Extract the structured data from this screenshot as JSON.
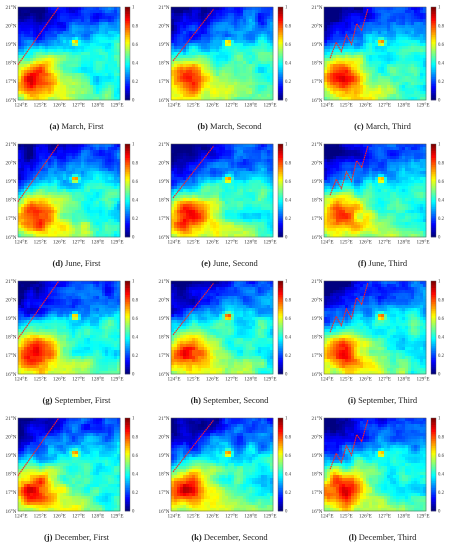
{
  "figure": {
    "lat_labels": [
      "21°N",
      "20°N",
      "19°N",
      "18°N",
      "17°N",
      "16°N"
    ],
    "lon_labels": [
      "124°E",
      "125°E",
      "126°E",
      "127°E",
      "128°E",
      "129°E"
    ],
    "colorbar": {
      "ticks": [
        "1",
        "0.8",
        "0.6",
        "0.4",
        "0.2",
        "0"
      ],
      "colormap": "jet",
      "colors": [
        "#00008f",
        "#0000ff",
        "#0080ff",
        "#00ffff",
        "#80ff80",
        "#ffff00",
        "#ff8000",
        "#ff0000",
        "#800000"
      ]
    },
    "route_color": "#ff2020",
    "panels": [
      {
        "letter": "(a)",
        "caption": "March, First",
        "route": "first"
      },
      {
        "letter": "(b)",
        "caption": "March, Second",
        "route": "second"
      },
      {
        "letter": "(c)",
        "caption": "March, Third",
        "route": "third"
      },
      {
        "letter": "(d)",
        "caption": "June, First",
        "route": "first"
      },
      {
        "letter": "(e)",
        "caption": "June, Second",
        "route": "second"
      },
      {
        "letter": "(f)",
        "caption": "June, Third",
        "route": "third"
      },
      {
        "letter": "(g)",
        "caption": "September, First",
        "route": "first"
      },
      {
        "letter": "(h)",
        "caption": "September, Second",
        "route": "second"
      },
      {
        "letter": "(i)",
        "caption": "September, Third",
        "route": "third"
      },
      {
        "letter": "(j)",
        "caption": "December, First",
        "route": "first"
      },
      {
        "letter": "(k)",
        "caption": "December, Second",
        "route": "second"
      },
      {
        "letter": "(l)",
        "caption": "December, Third",
        "route": "third"
      }
    ]
  }
}
